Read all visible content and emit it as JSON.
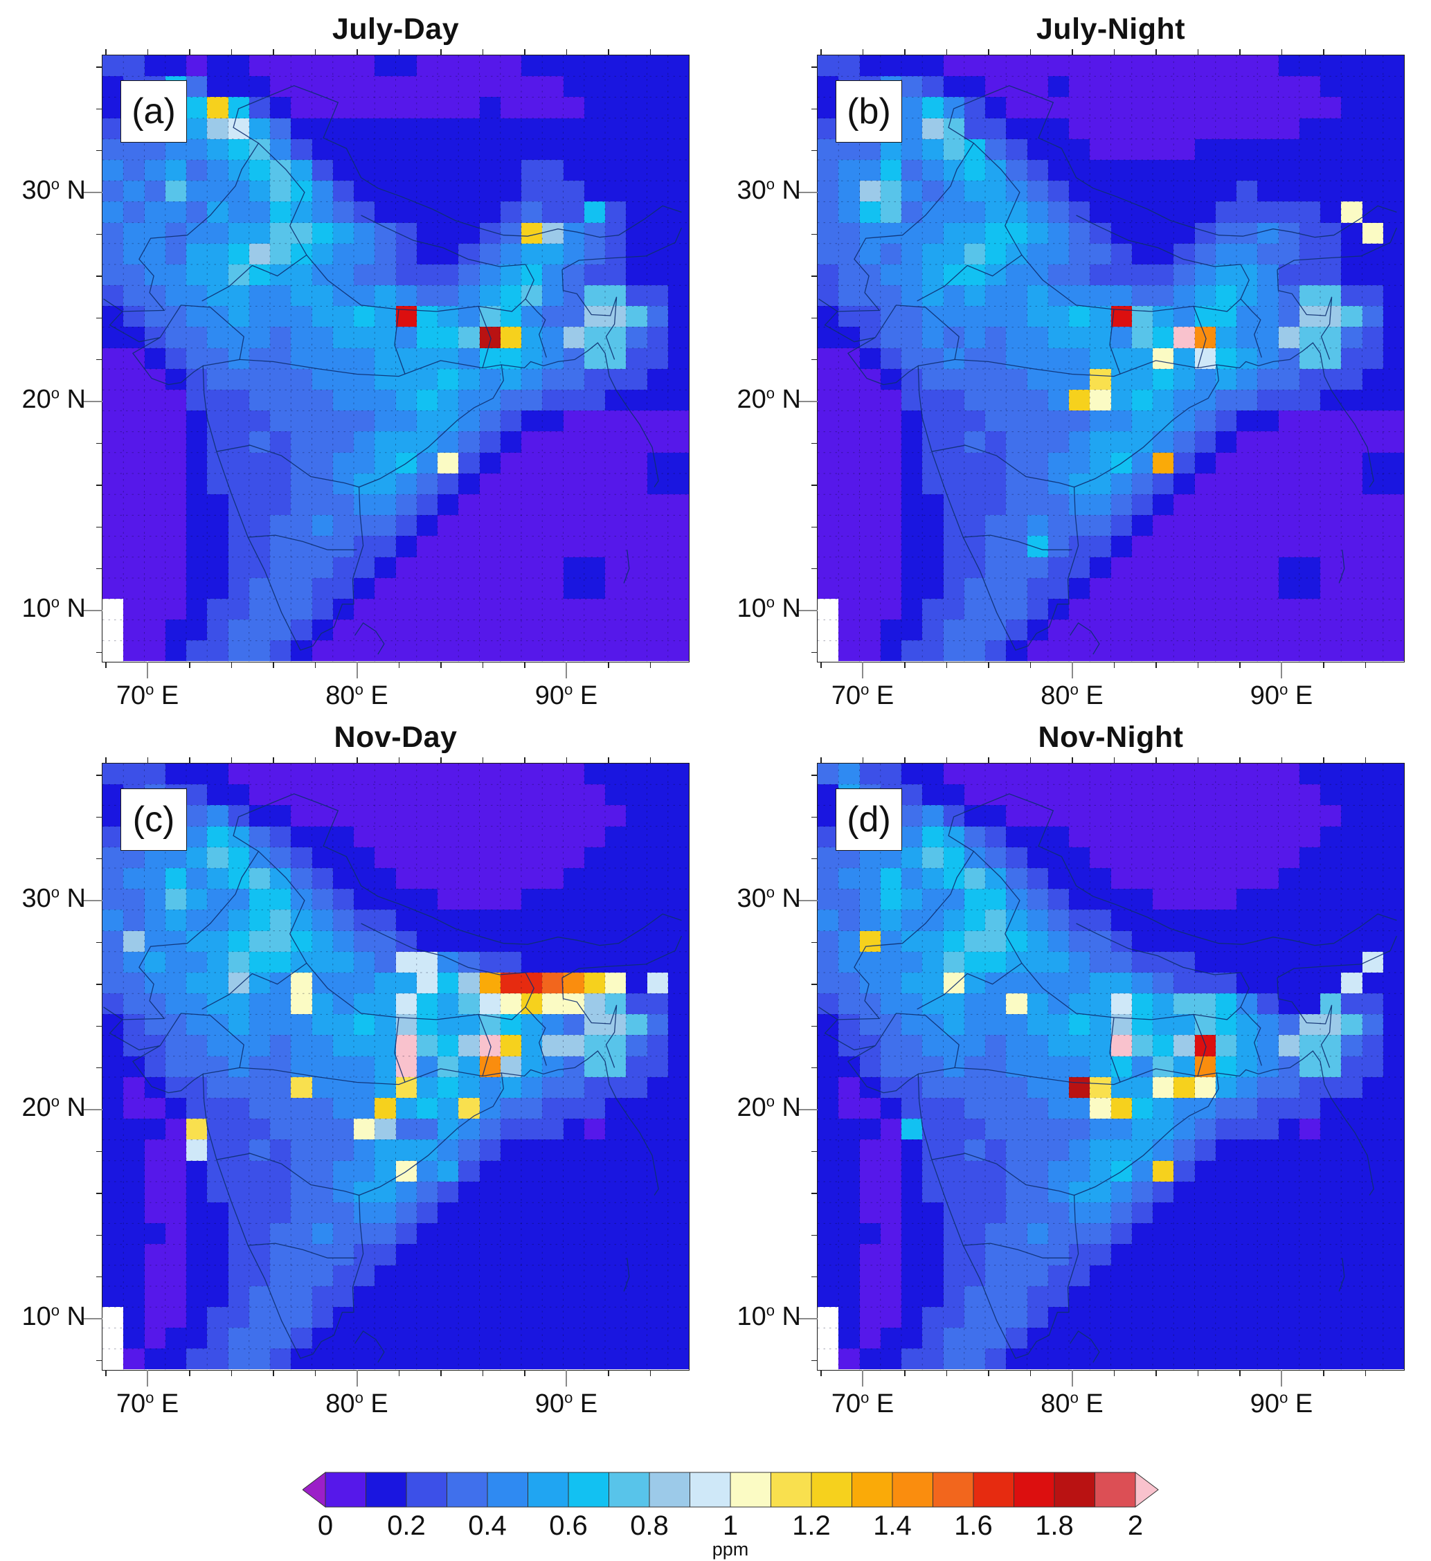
{
  "figure": {
    "axes": {
      "lon_tick_values": [
        70,
        80,
        90
      ],
      "lon_tick_texts": [
        "70",
        "80",
        "90"
      ],
      "lon_hemisphere": "E",
      "lat_tick_values": [
        30,
        20,
        10
      ],
      "lat_tick_texts": [
        "30",
        "20",
        "10"
      ],
      "lat_hemisphere": "N"
    },
    "colorbar": {
      "tick_labels": [
        "0",
        "0.2",
        "0.4",
        "0.6",
        "0.8",
        "1",
        "1.2",
        "1.4",
        "1.6",
        "1.8",
        "2"
      ],
      "unit": "ppm"
    }
  },
  "chart_data": {
    "type": "heatmap",
    "unit": "ppm",
    "lon_range": [
      67.85,
      95.85
    ],
    "lat_range": [
      7.55,
      36.55
    ],
    "cell_size_deg": 1,
    "value_min": 0,
    "value_max": 2,
    "value_step": 0.1,
    "encoding": "each grid character is a color level; level i (1-20) covers (i-1)*0.1 to i*0.1 ppm; 0 = below scale arrow, L(21) = above scale arrow; W = no data (white)",
    "level_chars": "0123456789ABCDEFGHIJKL",
    "level_colors": [
      "#9b1fc8",
      "#5618ea",
      "#1a16e0",
      "#3c50e8",
      "#4070ec",
      "#2f8af2",
      "#20a5f2",
      "#12c1f2",
      "#58c4ea",
      "#9ccae9",
      "#cfe8f8",
      "#fbfbc4",
      "#f9e04e",
      "#f6d11d",
      "#faaa08",
      "#fa8d0e",
      "#f2661d",
      "#e62b10",
      "#dc0f0f",
      "#b91212",
      "#dc4f55",
      "#f9c2cd"
    ],
    "missing_char": "W",
    "missing_color": "#ffffff",
    "panels": [
      {
        "id": "a",
        "title": "July-Day",
        "corner_label": "(a)",
        "rows": [
          "3322122111111221111122222222",
          "2337422211111111111111222222",
          "23477D7321111111112111122222",
          "343769A642222222222222222222",
          "4445567853222222222222222222",
          "5456456786322222222233222222",
          "4548555687532222222233322222",
          "5455465576543222222343373222",
          "45545566887654322234D9543222",
          "4554667987655432234566543222",
          "4455668766554433345675433222",
          "3445566556655654456785488332",
          "23445565556676I765875449 9842",
          "2234455545566657 78JD65988432",
          "1123445445555666657765488332",
          "1112344444555666765654433322",
          "1111333444455567655443332222",
          "1111233344444556654322111111",
          "1111233434445666543211111111",
          "111123333445 5675B32111111122",
          "1111233334456654321111111122",
          "1111223334445543211111111111",
          "1111223344544432111111111111",
          "1111223344443321111111111111",
          "1111223344433211111111221111",
          "1111223444332111111111221111",
          "W111233444321111111111111111",
          "W112234443211111111111111111",
          "W112334432111111111111111111"
        ]
      },
      {
        "id": "b",
        "title": "July-Night",
        "corner_label": "(b)",
        "rows": [
          "3322221111111111111111222222",
          "2335432211121111111111112222",
          "2336575321111111111111111222",
          "3437598332221111111111122222",
          "4446568743222111112222222222",
          "4557456764322222222222222222",
          "4598545665432222222232222222",
          "45784555665432222223333 32B22",
          "44555566776543222234454332B2",
          "4454566876554432234554433222",
          "3445567765544333345665333222",
          "3444565655655554456765488332",
          "23344555556676I865775549 9842",
          "22344545455666587LF655988432",
          "112344544555 5666B6A765488332",
          "11123444445 55C66765654433322",
          "111133344445DB676554433 32222",
          "1111233344444556654322111111",
          "1111233434445666543211111111",
          "111123333445 5675E32111111122",
          "1111233334456654321111111122",
          "1111223334445543211111111111",
          "1111223344544432111111111111",
          "1111223344743321111111111111",
          "1111223344433211111111221111",
          "1111223444332111111111221111",
          "W111233444321111111111111111",
          "W112234443211111111111111111",
          "W112334432111111111111111111"
        ]
      },
      {
        "id": "c",
        "title": "Nov-Day",
        "corner_label": "(c)",
        "rows": [
          "3332221111111111111111122222",
          "2343322111111111111111112222",
          "2336453221111111111111111222",
          "3446576432221111111111112222",
          "4455687543222111111111122222",
          "4557567864322211111111222222",
          "4458655775432222111122222222",
          "5456556786543322222222222222",
          "4955667887654432222222222222",
          "456556877666 54AA543322222222",
          "445566965B55566A79EHHGFDB2A2",
          "34455665 5B6566A768ABDBB98332",
          "2344556555667697668765499842",
          "23344555455666L879LD69988432",
          "223444544555 56L586F965488332",
          "21233444 4C5556C6765654433322",
          "211233344445 5D676C544333 2222",
          "2221C3334444B944654333212222",
          "2211A3343444566654322222 2222",
          "221123333445 56B5632222222222",
          "2211233334456654322222222222",
          "2211223334445543222222222222",
          "2221223344544432222222222222",
          "2211223344443322222222222222",
          "2211223344433222222222222222",
          "2211223444332222222222222222",
          "W211233444322222222222222222",
          "W212234443222222222222222222",
          "W122334432222222222222222222"
        ]
      },
      {
        "id": "d",
        "title": "Nov-Night",
        "corner_label": "(d)",
        "rows": [
          "4533221111111111111111122222",
          "2643322111111111111111112222",
          "2656453221111111111111111222",
          "3456576432221111111111112222",
          "4455687543222111111111122222",
          "4557567864322211111111222222",
          "4457655775432222111122222222",
          "5456556786543322222222222222",
          "45D5667887654432222222222222",
          "4555568776665443332222222 2A2",
          "445566B6555556654333 22222A22",
          "34455665 5B6566A768875322 8332",
          "2344556555667697668765499842",
          "23344555455666L879I865988432",
          "2234445445555675 86F765488332",
          "212334444455JC66BDB654433322",
          "211233344445 5BD7655443332222",
          "2221733344444556654333212222",
          "2211233434445666543222222222",
          "221123333445 5675D32222222222",
          "2211233334456654322222222222",
          "2211223334445543222222222222",
          "2221223344544432222222222222",
          "2211223344443322222222222222",
          "2211223344433222222222222222",
          "2211223444332222222222222222",
          "W211233444322222222222222222",
          "W212234443222222222222222222",
          "W122334432222222222222222222"
        ]
      }
    ]
  }
}
